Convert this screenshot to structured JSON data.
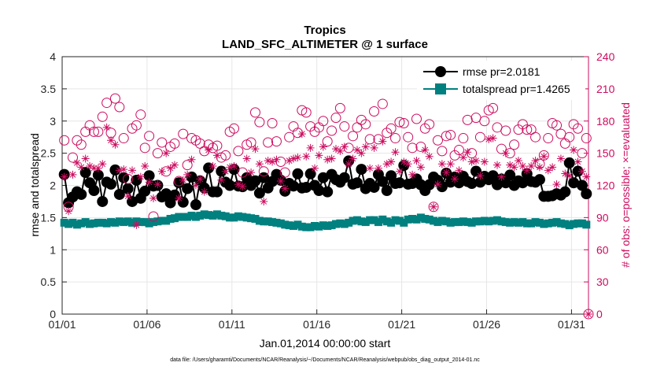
{
  "chart_data": {
    "type": "line",
    "title": "Tropics",
    "subtitle": "LAND_SFC_ALTIMETER @ 1 surface",
    "xlabel": "Jan.01,2014 00:00:00 start",
    "ylabel": "rmse and totalspread",
    "ylabel_right": "# of obs: o=possible; ×=evaluated",
    "footer": "data file: /Users/gharamti/Documents/NCAR/Reanalysis/~/Documents/NCAR/Reanalysis/webpub/obs_diag_output_2014-01.nc",
    "x_ticks": [
      "01/01",
      "01/06",
      "01/11",
      "01/16",
      "01/21",
      "01/26",
      "01/31"
    ],
    "x_tick_days": [
      0,
      5,
      10,
      15,
      20,
      25,
      30
    ],
    "xlim": [
      0,
      31
    ],
    "ylim": [
      0,
      4
    ],
    "y_ticks": [
      "0",
      "0.5",
      "1",
      "1.5",
      "2",
      "2.5",
      "3",
      "3.5",
      "4"
    ],
    "y_tick_values": [
      0,
      0.5,
      1,
      1.5,
      2,
      2.5,
      3,
      3.5,
      4
    ],
    "ylim_right": [
      0,
      240
    ],
    "y_ticks_right": [
      "0",
      "30",
      "60",
      "90",
      "120",
      "150",
      "180",
      "210",
      "240"
    ],
    "y_tick_values_right": [
      0,
      30,
      60,
      90,
      120,
      150,
      180,
      210,
      240
    ],
    "grid": true,
    "legend_position": "top-right",
    "n_points": 124,
    "series": [
      {
        "name": "rmse pr=2.0181",
        "axis": "left",
        "color": "#000000",
        "marker": "circle",
        "values": [
          2.17,
          1.73,
          1.82,
          1.9,
          1.86,
          2.2,
          2.04,
          1.92,
          2.16,
          1.75,
          2.05,
          2.02,
          2.24,
          1.86,
          2.12,
          1.95,
          1.75,
          2.08,
          1.8,
          1.91,
          2.15,
          1.99,
          2.0,
          1.82,
          1.87,
          1.73,
          1.85,
          2.04,
          1.74,
          1.95,
          2.13,
          1.7,
          2.07,
          1.96,
          2.27,
          1.9,
          1.9,
          2.22,
          2.05,
          2.0,
          2.25,
          1.99,
          1.98,
          2.12,
          2.0,
          2.07,
          1.88,
          2.12,
          1.96,
          2.06,
          2.17,
          2.08,
          1.91,
          2.03,
          1.99,
          2.18,
          1.96,
          1.97,
          2.18,
          2.0,
          1.92,
          2.12,
          1.9,
          2.17,
          2.09,
          2.05,
          2.12,
          2.38,
          2.02,
          2.04,
          2.25,
          1.95,
          2.03,
          1.97,
          2.17,
          2.06,
          1.92,
          2.15,
          2.03,
          2.04,
          2.31,
          2.02,
          2.03,
          2.1,
          2.01,
          1.92,
          2.01,
          2.13,
          2.08,
          1.98,
          2.19,
          2.05,
          2.13,
          2.04,
          2.14,
          2.06,
          2.03,
          2.22,
          2.05,
          2.14,
          2.09,
          2.15,
          2.01,
          2.1,
          2.04,
          2.16,
          2.0,
          2.07,
          2.04,
          2.18,
          2.06,
          2.05,
          2.09,
          1.83,
          1.83,
          1.84,
          1.87,
          1.85,
          1.9,
          2.35,
          2.04,
          2.22,
          2.0,
          1.87
        ]
      },
      {
        "name": "totalspread pr=1.4265",
        "axis": "left",
        "color": "#00807f",
        "marker": "square",
        "values": [
          1.42,
          1.4,
          1.42,
          1.39,
          1.41,
          1.43,
          1.4,
          1.41,
          1.42,
          1.42,
          1.41,
          1.43,
          1.42,
          1.44,
          1.43,
          1.44,
          1.42,
          1.44,
          1.43,
          1.43,
          1.41,
          1.43,
          1.44,
          1.45,
          1.45,
          1.48,
          1.49,
          1.51,
          1.51,
          1.51,
          1.53,
          1.51,
          1.53,
          1.55,
          1.54,
          1.53,
          1.55,
          1.53,
          1.52,
          1.5,
          1.5,
          1.52,
          1.51,
          1.5,
          1.49,
          1.48,
          1.45,
          1.44,
          1.44,
          1.43,
          1.42,
          1.41,
          1.39,
          1.38,
          1.37,
          1.39,
          1.36,
          1.35,
          1.35,
          1.37,
          1.36,
          1.38,
          1.37,
          1.38,
          1.4,
          1.41,
          1.4,
          1.42,
          1.45,
          1.46,
          1.44,
          1.43,
          1.46,
          1.46,
          1.43,
          1.47,
          1.44,
          1.42,
          1.46,
          1.45,
          1.42,
          1.47,
          1.48,
          1.47,
          1.5,
          1.48,
          1.47,
          1.45,
          1.43,
          1.45,
          1.44,
          1.42,
          1.43,
          1.43,
          1.44,
          1.43,
          1.42,
          1.44,
          1.44,
          1.45,
          1.44,
          1.45,
          1.46,
          1.44,
          1.43,
          1.42,
          1.43,
          1.42,
          1.43,
          1.41,
          1.41,
          1.43,
          1.42,
          1.4,
          1.41,
          1.42,
          1.43,
          1.41,
          1.4,
          1.38,
          1.4,
          1.41,
          1.41,
          1.39
        ]
      },
      {
        "name": "possible",
        "axis": "right",
        "color": "#cc0c5f",
        "marker": "circle-open",
        "values": [
          162,
          100,
          146,
          162,
          158,
          170,
          176,
          170,
          170,
          184,
          197,
          169,
          201,
          193,
          164,
          126,
          173,
          176,
          186,
          155,
          166,
          91,
          150,
          160,
          133,
          156,
          159,
          124,
          168,
          139,
          164,
          162,
          159,
          152,
          158,
          155,
          157,
          146,
          148,
          170,
          173,
          152,
          132,
          158,
          160,
          188,
          179,
          133,
          160,
          178,
          161,
          142,
          132,
          165,
          175,
          169,
          190,
          188,
          175,
          170,
          174,
          180,
          161,
          171,
          183,
          192,
          175,
          155,
          166,
          174,
          181,
          177,
          163,
          189,
          163,
          196,
          169,
          173,
          164,
          179,
          178,
          165,
          155,
          182,
          156,
          173,
          177,
          100,
          162,
          152,
          166,
          167,
          148,
          153,
          164,
          181,
          150,
          183,
          165,
          180,
          190,
          192,
          174,
          154,
          171,
          150,
          158,
          172,
          177,
          172,
          172,
          165,
          140,
          148,
          164,
          178,
          176,
          168,
          159,
          165,
          177,
          173,
          150,
          164
        ]
      },
      {
        "name": "evaluated",
        "axis": "right",
        "color": "#cc0c5f",
        "marker": "asterisk",
        "values": [
          128,
          96,
          130,
          141,
          137,
          145,
          138,
          136,
          136,
          140,
          174,
          162,
          158,
          134,
          135,
          110,
          134,
          83,
          128,
          138,
          123,
          108,
          121,
          133,
          150,
          136,
          139,
          108,
          125,
          130,
          144,
          120,
          126,
          114,
          153,
          138,
          148,
          125,
          133,
          137,
          138,
          121,
          119,
          145,
          132,
          154,
          140,
          105,
          143,
          142,
          144,
          124,
          117,
          143,
          145,
          146,
          168,
          147,
          155,
          136,
          148,
          156,
          144,
          145,
          154,
          152,
          156,
          140,
          145,
          153,
          150,
          156,
          136,
          155,
          136,
          161,
          140,
          142,
          151,
          133,
          142,
          140,
          130,
          143,
          137,
          153,
          147,
          100,
          121,
          140,
          132,
          140,
          126,
          134,
          146,
          151,
          142,
          143,
          129,
          142,
          163,
          164,
          139,
          128,
          150,
          139,
          137,
          143,
          138,
          134,
          138,
          143,
          137,
          147,
          134,
          137,
          121,
          145,
          131,
          129,
          153,
          142,
          133,
          128
        ]
      }
    ]
  }
}
